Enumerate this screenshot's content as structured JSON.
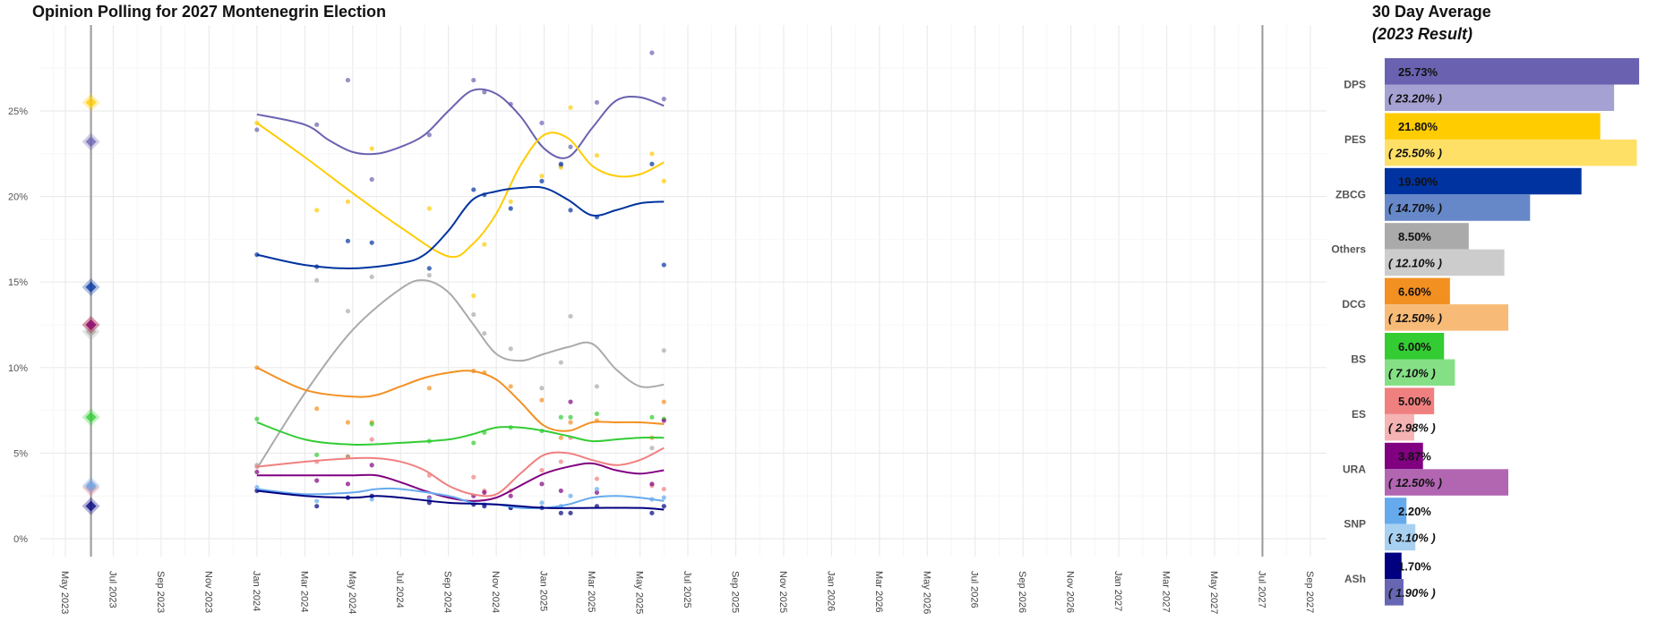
{
  "chart_data": [
    {
      "type": "line",
      "title": "Opinion Polling for 2027 Montenegrin Election",
      "xlabel": "",
      "ylabel": "",
      "yticks": [
        "0%",
        "5%",
        "10%",
        "15%",
        "20%",
        "25%"
      ],
      "ylim": [
        0,
        29
      ],
      "x_unit": "months since May 2023",
      "xticks": [
        "May 2023",
        "Jul 2023",
        "Sep 2023",
        "Nov 2023",
        "Jan 2024",
        "Mar 2024",
        "May 2024",
        "Jul 2024",
        "Sep 2024",
        "Nov 2024",
        "Jan 2025",
        "Mar 2025",
        "May 2025",
        "Jul 2025",
        "Sep 2025",
        "Nov 2025",
        "Jan 2026",
        "Mar 2026",
        "May 2026",
        "Jul 2026",
        "Sep 2026",
        "Nov 2026",
        "Jan 2027",
        "Mar 2027",
        "May 2027",
        "Jul 2027",
        "Sep 2027"
      ],
      "xlim": [
        -0.5,
        52.5
      ],
      "election_2023_x": 1.07,
      "election_2027_x": 50.0,
      "grid": true,
      "poll_x": [
        8,
        10.5,
        11.8,
        12.8,
        15.2,
        17.05,
        17.5,
        18.6,
        19.9,
        20.7,
        21.1,
        22.2,
        24.5,
        25
      ],
      "series": [
        {
          "name": "DPS",
          "color": "#6a62b0",
          "result_2023": 23.2,
          "trend": [
            [
              8,
              24.8
            ],
            [
              10,
              24.2
            ],
            [
              11,
              23.3
            ],
            [
              12,
              22.6
            ],
            [
              13,
              22.5
            ],
            [
              14,
              22.9
            ],
            [
              15,
              23.6
            ],
            [
              16,
              25.0
            ],
            [
              17,
              26.2
            ],
            [
              18,
              26.0
            ],
            [
              19,
              24.7
            ],
            [
              20,
              22.8
            ],
            [
              21,
              22.3
            ],
            [
              22,
              24.0
            ],
            [
              23,
              25.6
            ],
            [
              24,
              25.8
            ],
            [
              25,
              25.3
            ]
          ],
          "polls": [
            23.9,
            24.2,
            26.8,
            21.0,
            23.6,
            26.8,
            26.1,
            25.4,
            24.3,
            21.8,
            22.9,
            25.5,
            28.4,
            25.7
          ]
        },
        {
          "name": "PES",
          "color": "#ffcc00",
          "result_2023": 25.5,
          "trend": [
            [
              8,
              24.3
            ],
            [
              10,
              22.3
            ],
            [
              12,
              20.2
            ],
            [
              14,
              18.2
            ],
            [
              16,
              16.5
            ],
            [
              17,
              17.2
            ],
            [
              18,
              19.0
            ],
            [
              19,
              21.8
            ],
            [
              20,
              23.6
            ],
            [
              21,
              23.4
            ],
            [
              22,
              21.8
            ],
            [
              23,
              21.2
            ],
            [
              24,
              21.3
            ],
            [
              25,
              22.0
            ]
          ],
          "polls": [
            24.3,
            19.2,
            19.7,
            22.8,
            19.3,
            14.2,
            17.2,
            19.7,
            21.2,
            21.7,
            25.2,
            22.4,
            22.5,
            20.9
          ]
        },
        {
          "name": "ZBCG",
          "color": "#0033a0",
          "result_2023": 14.7,
          "trend": [
            [
              8,
              16.6
            ],
            [
              10,
              16.0
            ],
            [
              12,
              15.8
            ],
            [
              14,
              16.1
            ],
            [
              15,
              16.6
            ],
            [
              16,
              18.0
            ],
            [
              17,
              19.8
            ],
            [
              18,
              20.3
            ],
            [
              19,
              20.5
            ],
            [
              20,
              20.5
            ],
            [
              21,
              19.8
            ],
            [
              22,
              18.9
            ],
            [
              23,
              19.2
            ],
            [
              24,
              19.6
            ],
            [
              25,
              19.7
            ]
          ],
          "polls": [
            16.6,
            15.9,
            17.4,
            17.3,
            15.8,
            20.4,
            20.1,
            19.3,
            20.9,
            21.9,
            19.2,
            18.8,
            21.9,
            16.0
          ]
        },
        {
          "name": "Others",
          "color": "#aaaaaa",
          "result_2023": 12.1,
          "trend": [
            [
              8,
              4.1
            ],
            [
              10,
              8.5
            ],
            [
              12,
              12.2
            ],
            [
              14,
              14.6
            ],
            [
              15,
              15.1
            ],
            [
              16,
              14.4
            ],
            [
              17,
              12.6
            ],
            [
              18,
              10.8
            ],
            [
              19,
              10.4
            ],
            [
              20,
              10.8
            ],
            [
              21,
              11.2
            ],
            [
              22,
              11.4
            ],
            [
              23,
              9.9
            ],
            [
              24,
              8.9
            ],
            [
              25,
              9.0
            ]
          ],
          "polls": [
            4.3,
            15.1,
            13.3,
            15.3,
            15.4,
            13.1,
            12.0,
            11.1,
            8.8,
            10.3,
            13.0,
            8.9,
            5.3,
            11.0
          ]
        },
        {
          "name": "DCG",
          "color": "#f39022",
          "result_2023": 12.5,
          "trend": [
            [
              8,
              10.0
            ],
            [
              10,
              8.7
            ],
            [
              12,
              8.3
            ],
            [
              13,
              8.4
            ],
            [
              14,
              8.9
            ],
            [
              15,
              9.4
            ],
            [
              16,
              9.7
            ],
            [
              17,
              9.8
            ],
            [
              18,
              9.3
            ],
            [
              19,
              8.0
            ],
            [
              20,
              6.6
            ],
            [
              21,
              6.3
            ],
            [
              22,
              6.8
            ],
            [
              23,
              6.8
            ],
            [
              24,
              6.8
            ],
            [
              25,
              6.7
            ]
          ],
          "polls": [
            10.0,
            7.6,
            6.8,
            6.8,
            8.8,
            9.8,
            9.7,
            8.9,
            8.1,
            5.9,
            6.8,
            6.9,
            5.9,
            8.0
          ]
        },
        {
          "name": "BS",
          "color": "#33cc33",
          "result_2023": 7.1,
          "trend": [
            [
              8,
              6.8
            ],
            [
              10,
              5.8
            ],
            [
              12,
              5.5
            ],
            [
              14,
              5.6
            ],
            [
              16,
              5.8
            ],
            [
              17,
              6.1
            ],
            [
              18,
              6.5
            ],
            [
              19,
              6.5
            ],
            [
              20,
              6.3
            ],
            [
              21,
              6.0
            ],
            [
              22,
              5.7
            ],
            [
              23,
              5.8
            ],
            [
              24,
              5.9
            ],
            [
              25,
              5.9
            ]
          ],
          "polls": [
            7.0,
            4.9,
            4.8,
            6.7,
            5.7,
            5.6,
            6.2,
            6.5,
            6.3,
            7.1,
            7.1,
            7.3,
            7.1,
            7.0
          ]
        },
        {
          "name": "ES",
          "color": "#f08080",
          "result_2023": 2.98,
          "trend": [
            [
              8,
              4.2
            ],
            [
              10,
              4.5
            ],
            [
              12,
              4.7
            ],
            [
              13,
              4.7
            ],
            [
              14,
              4.5
            ],
            [
              15,
              4.0
            ],
            [
              16,
              3.1
            ],
            [
              17,
              2.6
            ],
            [
              18,
              2.6
            ],
            [
              19,
              3.8
            ],
            [
              20,
              4.9
            ],
            [
              21,
              5.0
            ],
            [
              22,
              4.6
            ],
            [
              23,
              4.3
            ],
            [
              24,
              4.6
            ],
            [
              25,
              5.3
            ]
          ],
          "polls": [
            4.2,
            4.5,
            4.8,
            5.8,
            3.7,
            3.6,
            2.8,
            2.8,
            4.0,
            4.5,
            5.9,
            3.5,
            3.1,
            2.9
          ]
        },
        {
          "name": "URA",
          "color": "#800080",
          "result_2023": 12.5,
          "trend": [
            [
              8,
              3.7
            ],
            [
              10,
              3.7
            ],
            [
              12,
              3.7
            ],
            [
              13,
              3.7
            ],
            [
              14,
              3.3
            ],
            [
              15,
              2.8
            ],
            [
              16,
              2.4
            ],
            [
              17,
              2.2
            ],
            [
              18,
              2.4
            ],
            [
              19,
              3.1
            ],
            [
              20,
              3.8
            ],
            [
              21,
              4.2
            ],
            [
              22,
              4.4
            ],
            [
              23,
              4.0
            ],
            [
              24,
              3.8
            ],
            [
              25,
              4.0
            ]
          ],
          "polls": [
            3.9,
            3.4,
            3.2,
            4.3,
            2.4,
            2.5,
            2.7,
            2.5,
            3.2,
            2.8,
            8.0,
            2.7,
            3.2,
            6.9
          ]
        },
        {
          "name": "SNP",
          "color": "#66aaee",
          "result_2023": 3.1,
          "trend": [
            [
              8,
              2.9
            ],
            [
              10,
              2.6
            ],
            [
              12,
              2.7
            ],
            [
              13,
              2.9
            ],
            [
              14,
              2.9
            ],
            [
              16,
              2.5
            ],
            [
              17,
              2.1
            ],
            [
              18,
              2.0
            ],
            [
              19,
              1.8
            ],
            [
              20,
              1.8
            ],
            [
              21,
              2.0
            ],
            [
              22,
              2.4
            ],
            [
              23,
              2.5
            ],
            [
              24,
              2.4
            ],
            [
              25,
              2.2
            ]
          ],
          "polls": [
            3.0,
            2.2,
            2.4,
            2.3,
            2.3,
            2.1,
            2.0,
            1.8,
            2.1,
            1.9,
            2.5,
            2.9,
            2.3,
            2.4
          ]
        },
        {
          "name": "ASh",
          "color": "#000080",
          "result_2023": 1.9,
          "trend": [
            [
              8,
              2.8
            ],
            [
              10,
              2.5
            ],
            [
              12,
              2.4
            ],
            [
              13,
              2.5
            ],
            [
              14,
              2.4
            ],
            [
              16,
              2.1
            ],
            [
              18,
              2.0
            ],
            [
              20,
              1.8
            ],
            [
              22,
              1.8
            ],
            [
              24,
              1.8
            ],
            [
              25,
              1.7
            ]
          ],
          "polls": [
            2.8,
            1.9,
            2.4,
            2.5,
            2.1,
            2.0,
            1.9,
            1.8,
            1.8,
            1.5,
            1.5,
            1.9,
            1.5,
            1.9
          ]
        }
      ]
    },
    {
      "type": "bar",
      "title": "30 Day Average",
      "subtitle": "(2023 Result)",
      "categories": [
        "DPS",
        "PES",
        "ZBCG",
        "Others",
        "DCG",
        "BS",
        "ES",
        "URA",
        "SNP",
        "ASh"
      ],
      "series": [
        {
          "name": "30 Day Average",
          "values": [
            25.73,
            21.8,
            19.9,
            8.5,
            6.6,
            6.0,
            5.0,
            3.87,
            2.2,
            1.7
          ],
          "labels": [
            "25.73%",
            "21.80%",
            "19.90%",
            "8.50%",
            "6.60%",
            "6.00%",
            "5.00%",
            "3.87%",
            "2.20%",
            "1.70%"
          ],
          "colors": [
            "#6a62b0",
            "#ffcc00",
            "#0033a0",
            "#aaaaaa",
            "#f39022",
            "#33cc33",
            "#f08080",
            "#800080",
            "#66aaee",
            "#000080"
          ]
        },
        {
          "name": "2023 Result",
          "values": [
            23.2,
            25.5,
            14.7,
            12.1,
            12.5,
            7.1,
            2.98,
            12.5,
            3.1,
            1.9
          ],
          "labels": [
            "( 23.20% )",
            "( 25.50% )",
            "( 14.70% )",
            "( 12.10% )",
            "( 12.50% )",
            "( 7.10% )",
            "( 2.98% )",
            "( 12.50% )",
            "( 3.10% )",
            "( 1.90% )"
          ],
          "colors": [
            "#a5a1d2",
            "#ffe066",
            "#6688c8",
            "#cccccc",
            "#f8bb77",
            "#85e085",
            "#f5b3b3",
            "#b266b2",
            "#a8d0f0",
            "#6666b2"
          ]
        }
      ],
      "xlim": [
        0,
        25.73
      ]
    }
  ]
}
